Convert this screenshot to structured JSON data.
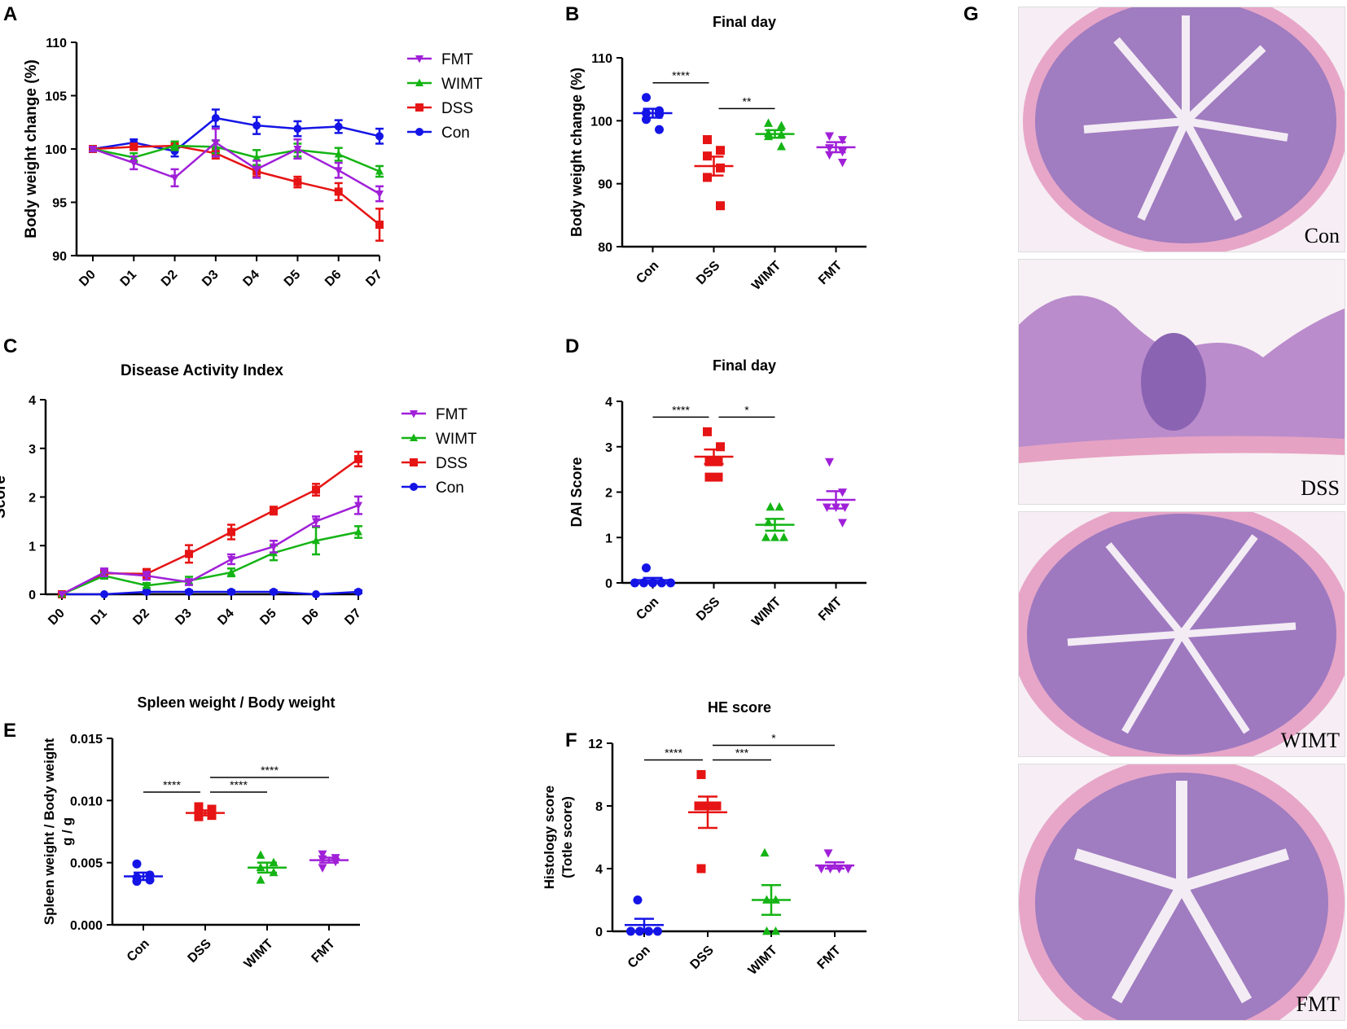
{
  "panel_letters": {
    "A": "A",
    "B": "B",
    "C": "C",
    "D": "D",
    "E": "E",
    "F": "F",
    "G": "G"
  },
  "colors": {
    "Con": "#1414e6",
    "DSS": "#e61414",
    "WIMT": "#14b414",
    "FMT": "#a020d8"
  },
  "chart_data": [
    {
      "id": "A",
      "type": "line",
      "title": "",
      "xlabel": "",
      "ylabel": "Body weight change (%)",
      "categories": [
        "D0",
        "D1",
        "D2",
        "D3",
        "D4",
        "D5",
        "D6",
        "D7"
      ],
      "ylim": [
        90,
        110
      ],
      "yticks": [
        90,
        95,
        100,
        105,
        110
      ],
      "yticklabels": [
        "90",
        "95",
        "100",
        "105",
        "110"
      ],
      "legend": [
        "FMT",
        "WIMT",
        "DSS",
        "Con"
      ],
      "series": [
        {
          "name": "Con",
          "marker": "circle",
          "values": [
            100,
            100.6,
            99.8,
            102.9,
            102.2,
            101.9,
            102.1,
            101.2
          ],
          "errors": [
            0.2,
            0.3,
            0.5,
            0.8,
            0.8,
            0.7,
            0.6,
            0.7
          ]
        },
        {
          "name": "DSS",
          "marker": "square",
          "values": [
            100,
            100.2,
            100.3,
            99.6,
            97.9,
            96.9,
            96.0,
            92.9
          ],
          "errors": [
            0.2,
            0.3,
            0.4,
            0.5,
            0.5,
            0.5,
            0.8,
            1.5
          ]
        },
        {
          "name": "WIMT",
          "marker": "triangle-up",
          "values": [
            100,
            99.2,
            100.3,
            100.2,
            99.2,
            99.9,
            99.5,
            97.9
          ],
          "errors": [
            0.2,
            0.4,
            0.4,
            0.6,
            0.7,
            0.6,
            0.6,
            0.5
          ]
        },
        {
          "name": "FMT",
          "marker": "triangle-down",
          "values": [
            100,
            98.7,
            97.3,
            100.6,
            98.1,
            100.0,
            98.0,
            95.8
          ],
          "errors": [
            0.2,
            0.6,
            0.8,
            1.3,
            0.8,
            0.9,
            0.7,
            0.7
          ]
        }
      ]
    },
    {
      "id": "B",
      "type": "scatter",
      "title": "Final day",
      "ylabel": "Body weight change (%)",
      "categories": [
        "Con",
        "DSS",
        "WIMT",
        "FMT"
      ],
      "ylim": [
        80,
        110
      ],
      "yticks": [
        80,
        90,
        100,
        110
      ],
      "yticklabels": [
        "80",
        "90",
        "100",
        "110"
      ],
      "groups": [
        {
          "name": "Con",
          "marker": "circle",
          "points": [
            103.7,
            101.6,
            101.2,
            101.0,
            100.2,
            98.6
          ],
          "mean": 101.2,
          "sem": 0.7
        },
        {
          "name": "DSS",
          "marker": "square",
          "points": [
            97.0,
            95.3,
            94.4,
            92.5,
            91.0,
            86.5
          ],
          "mean": 92.8,
          "sem": 1.5
        },
        {
          "name": "WIMT",
          "marker": "triangle-up",
          "points": [
            99.6,
            99.2,
            98.0,
            97.8,
            97.5,
            95.9
          ],
          "mean": 97.9,
          "sem": 0.6
        },
        {
          "name": "FMT",
          "marker": "triangle-down",
          "points": [
            97.6,
            97.0,
            95.7,
            95.1,
            94.6,
            93.4
          ],
          "mean": 95.8,
          "sem": 0.8
        }
      ],
      "sig": [
        {
          "from": 0,
          "to": 1,
          "label": "****"
        },
        {
          "from": 1,
          "to": 2,
          "label": "**"
        }
      ]
    },
    {
      "id": "C",
      "type": "line",
      "title": "Disease Activity Index",
      "xlabel": "",
      "ylabel": "Score",
      "categories": [
        "D0",
        "D1",
        "D2",
        "D3",
        "D4",
        "D5",
        "D6",
        "D7"
      ],
      "ylim": [
        0,
        4
      ],
      "yticks": [
        0,
        1,
        2,
        3,
        4
      ],
      "yticklabels": [
        "0",
        "1",
        "2",
        "3",
        "4"
      ],
      "legend": [
        "FMT",
        "WIMT",
        "DSS",
        "Con"
      ],
      "series": [
        {
          "name": "Con",
          "marker": "circle",
          "values": [
            0,
            0,
            0.05,
            0.05,
            0.05,
            0.05,
            0,
            0.05
          ],
          "errors": [
            0,
            0,
            0.03,
            0.03,
            0.03,
            0.03,
            0,
            0.03
          ]
        },
        {
          "name": "DSS",
          "marker": "square",
          "values": [
            0,
            0.43,
            0.42,
            0.83,
            1.28,
            1.72,
            2.15,
            2.78
          ],
          "errors": [
            0,
            0.08,
            0.1,
            0.18,
            0.15,
            0.08,
            0.12,
            0.15
          ]
        },
        {
          "name": "WIMT",
          "marker": "triangle-up",
          "values": [
            0,
            0.38,
            0.18,
            0.28,
            0.45,
            0.85,
            1.1,
            1.28
          ],
          "errors": [
            0,
            0.06,
            0.05,
            0.08,
            0.08,
            0.15,
            0.28,
            0.12
          ]
        },
        {
          "name": "FMT",
          "marker": "triangle-down",
          "values": [
            0,
            0.45,
            0.38,
            0.25,
            0.72,
            0.98,
            1.5,
            1.83
          ],
          "errors": [
            0,
            0.08,
            0.08,
            0.06,
            0.1,
            0.12,
            0.1,
            0.18
          ]
        }
      ]
    },
    {
      "id": "D",
      "type": "scatter",
      "title": "Final day",
      "ylabel": "DAI Score",
      "categories": [
        "Con",
        "DSS",
        "WIMT",
        "FMT"
      ],
      "ylim": [
        0,
        4
      ],
      "yticks": [
        0,
        1,
        2,
        3,
        4
      ],
      "yticklabels": [
        "0",
        "1",
        "2",
        "3",
        "4"
      ],
      "groups": [
        {
          "name": "Con",
          "marker": "circle",
          "points": [
            0.33,
            0,
            0,
            0,
            0,
            0
          ],
          "mean": 0.06,
          "sem": 0.05
        },
        {
          "name": "DSS",
          "marker": "square",
          "points": [
            3.33,
            3.0,
            2.67,
            2.67,
            2.33,
            2.33
          ],
          "mean": 2.78,
          "sem": 0.16
        },
        {
          "name": "WIMT",
          "marker": "triangle-up",
          "points": [
            1.67,
            1.67,
            1.33,
            1.0,
            1.0,
            1.0
          ],
          "mean": 1.28,
          "sem": 0.13
        },
        {
          "name": "FMT",
          "marker": "triangle-down",
          "points": [
            2.67,
            2.0,
            1.67,
            1.67,
            1.67,
            1.33
          ],
          "mean": 1.83,
          "sem": 0.19
        }
      ],
      "sig": [
        {
          "from": 0,
          "to": 1,
          "label": "****"
        },
        {
          "from": 1,
          "to": 2,
          "label": "*"
        }
      ]
    },
    {
      "id": "E",
      "type": "scatter",
      "title": "Spleen weight / Body weight",
      "ylabel": "Spleen weight / Body weight",
      "ylabel2": "g / g",
      "categories": [
        "Con",
        "DSS",
        "WIMT",
        "FMT"
      ],
      "ylim": [
        0,
        0.015
      ],
      "yticks": [
        0,
        0.005,
        0.01,
        0.015
      ],
      "yticklabels": [
        "0.000",
        "0.005",
        "0.010",
        "0.015"
      ],
      "groups": [
        {
          "name": "Con",
          "marker": "circle",
          "points": [
            0.0049,
            0.004,
            0.0038,
            0.0036,
            0.0035
          ],
          "mean": 0.0039,
          "sem": 0.0003
        },
        {
          "name": "DSS",
          "marker": "square",
          "points": [
            0.0095,
            0.0093,
            0.009,
            0.0088,
            0.0087
          ],
          "mean": 0.009,
          "sem": 0.0002
        },
        {
          "name": "WIMT",
          "marker": "triangle-up",
          "points": [
            0.0056,
            0.005,
            0.0046,
            0.0042,
            0.0036
          ],
          "mean": 0.0046,
          "sem": 0.0004
        },
        {
          "name": "FMT",
          "marker": "triangle-down",
          "points": [
            0.0057,
            0.0054,
            0.0053,
            0.0051,
            0.0046
          ],
          "mean": 0.0052,
          "sem": 0.0002
        }
      ],
      "sig": [
        {
          "from": 0,
          "to": 1,
          "label": "****"
        },
        {
          "from": 1,
          "to": 2,
          "label": "****"
        },
        {
          "from": 1,
          "to": 3,
          "label": "****",
          "level": 2
        }
      ]
    },
    {
      "id": "F",
      "type": "scatter",
      "title": "HE score",
      "ylabel": "Histology score",
      "ylabel2": "(Totle score)",
      "categories": [
        "Con",
        "DSS",
        "WIMT",
        "FMT"
      ],
      "ylim": [
        0,
        12
      ],
      "yticks": [
        0,
        4,
        8,
        12
      ],
      "yticklabels": [
        "0",
        "4",
        "8",
        "12"
      ],
      "groups": [
        {
          "name": "Con",
          "marker": "circle",
          "points": [
            2,
            0,
            0,
            0,
            0
          ],
          "mean": 0.4,
          "sem": 0.4
        },
        {
          "name": "DSS",
          "marker": "square",
          "points": [
            10,
            8,
            8,
            8,
            4
          ],
          "mean": 7.6,
          "sem": 1.0
        },
        {
          "name": "WIMT",
          "marker": "triangle-up",
          "points": [
            5,
            2,
            2,
            0,
            0
          ],
          "mean": 2.0,
          "sem": 0.95
        },
        {
          "name": "FMT",
          "marker": "triangle-down",
          "points": [
            5,
            4,
            4,
            4,
            4
          ],
          "mean": 4.2,
          "sem": 0.2
        }
      ],
      "sig": [
        {
          "from": 0,
          "to": 1,
          "label": "****"
        },
        {
          "from": 1,
          "to": 2,
          "label": "***"
        },
        {
          "from": 1,
          "to": 3,
          "label": "*",
          "level": 2
        }
      ]
    }
  ],
  "histology": [
    {
      "label": "Con"
    },
    {
      "label": "DSS"
    },
    {
      "label": "WIMT"
    },
    {
      "label": "FMT"
    }
  ]
}
